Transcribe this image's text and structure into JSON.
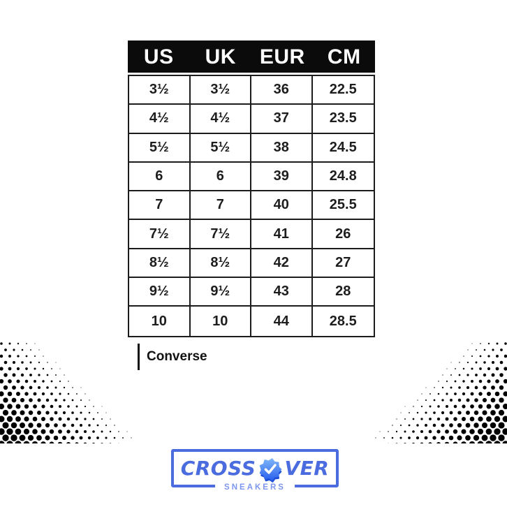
{
  "chart_data": {
    "type": "table",
    "columns": [
      "US",
      "UK",
      "EUR",
      "CM"
    ],
    "rows": [
      [
        "3½",
        "3½",
        "36",
        "22.5"
      ],
      [
        "4½",
        "4½",
        "37",
        "23.5"
      ],
      [
        "5½",
        "5½",
        "38",
        "24.5"
      ],
      [
        "6",
        "6",
        "39",
        "24.8"
      ],
      [
        "7",
        "7",
        "40",
        "25.5"
      ],
      [
        "7½",
        "7½",
        "41",
        "26"
      ],
      [
        "8½",
        "8½",
        "42",
        "27"
      ],
      [
        "9½",
        "9½",
        "43",
        "28"
      ],
      [
        "10",
        "10",
        "44",
        "28.5"
      ]
    ],
    "header_style": "black band with white text",
    "grid": "on"
  },
  "caption": {
    "brand": "Converse"
  },
  "logo": {
    "text_left": "CROSS",
    "text_right": "VER",
    "full_name": "CROSSOVER",
    "subtitle": "SNEAKERS",
    "badge_icon": "verified-check-badge",
    "accent_color": "#4a6cdf",
    "subtitle_color": "#7d97ef"
  },
  "colors": {
    "background": "#ffffff",
    "header_bg": "#0b0b0b",
    "header_text": "#ffffff",
    "table_border": "#1c1c1c",
    "cell_text": "#1d1d1d",
    "halftone_dots": "#000000",
    "badge_light": "#7cb3f8",
    "badge_dark": "#1d4ed8"
  }
}
